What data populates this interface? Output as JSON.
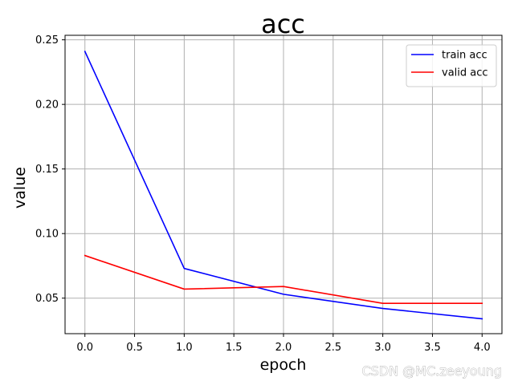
{
  "chart_data": {
    "type": "line",
    "title": "acc",
    "xlabel": "epoch",
    "ylabel": "value",
    "xlim": [
      -0.2,
      4.2
    ],
    "ylim": [
      0.0225,
      0.2535
    ],
    "x_ticks": [
      0.0,
      0.5,
      1.0,
      1.5,
      2.0,
      2.5,
      3.0,
      3.5,
      4.0
    ],
    "x_tick_labels": [
      "0.0",
      "0.5",
      "1.0",
      "1.5",
      "2.0",
      "2.5",
      "3.0",
      "3.5",
      "4.0"
    ],
    "y_ticks": [
      0.05,
      0.1,
      0.15,
      0.2,
      0.25
    ],
    "y_tick_labels": [
      "0.05",
      "0.10",
      "0.15",
      "0.20",
      "0.25"
    ],
    "grid": true,
    "legend_position": "top-right",
    "x": [
      0,
      1,
      2,
      3,
      4
    ],
    "series": [
      {
        "name": "train acc",
        "color": "#0000ff",
        "values": [
          0.241,
          0.073,
          0.053,
          0.042,
          0.034
        ]
      },
      {
        "name": "valid acc",
        "color": "#ff0000",
        "values": [
          0.083,
          0.057,
          0.059,
          0.046,
          0.046
        ]
      }
    ]
  },
  "watermark": "CSDN @MC.zeeyoung"
}
